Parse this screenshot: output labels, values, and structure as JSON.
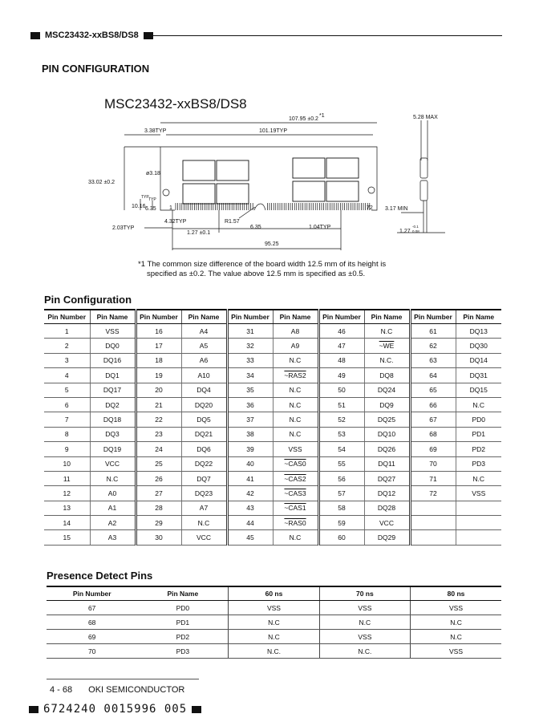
{
  "header": {
    "title": "MSC23432-xxBS8/DS8"
  },
  "section_title": "PIN CONFIGURATION",
  "diagram": {
    "title": "MSC23432-xxBS8/DS8",
    "dims": {
      "length": "107.95 ±0.2",
      "length_note": "*1",
      "pitch_span": "101.19TYP",
      "edge_offset": "3.38TYP",
      "height": "33.02 ±0.2",
      "hole": "ø3.18",
      "h1": "10.16",
      "h1_typ": "TYP",
      "h2": "6.35",
      "h2_typ": "TYP",
      "d1": "2.03TYP",
      "d2": "4.32TYP",
      "pitch": "1.27 ±0.1",
      "radius": "R1.57",
      "notch": "6.35",
      "pad": "1.04TYP",
      "span": "95.25",
      "pin_first": "1",
      "pin_last": "72",
      "thickness": "5.28 MAX",
      "lead": "3.17 MIN",
      "board": "1.27",
      "board_tol_plus": "-0.1",
      "board_tol_minus": "0.08"
    },
    "footnote": [
      "*1 The common size difference of the board width 12.5 mm of its height is",
      "specified as ±0.2. The value above 12.5 mm is specified as ±0.5."
    ]
  },
  "pin_config": {
    "title": "Pin Configuration",
    "headers": [
      "Pin Number",
      "Pin Name"
    ],
    "columns": [
      [
        [
          "1",
          "VSS"
        ],
        [
          "2",
          "DQ0"
        ],
        [
          "3",
          "DQ16"
        ],
        [
          "4",
          "DQ1"
        ],
        [
          "5",
          "DQ17"
        ],
        [
          "6",
          "DQ2"
        ],
        [
          "7",
          "DQ18"
        ],
        [
          "8",
          "DQ3"
        ],
        [
          "9",
          "DQ19"
        ],
        [
          "10",
          "VCC"
        ],
        [
          "11",
          "N.C"
        ],
        [
          "12",
          "A0"
        ],
        [
          "13",
          "A1"
        ],
        [
          "14",
          "A2"
        ],
        [
          "15",
          "A3"
        ]
      ],
      [
        [
          "16",
          "A4"
        ],
        [
          "17",
          "A5"
        ],
        [
          "18",
          "A6"
        ],
        [
          "19",
          "A10"
        ],
        [
          "20",
          "DQ4"
        ],
        [
          "21",
          "DQ20"
        ],
        [
          "22",
          "DQ5"
        ],
        [
          "23",
          "DQ21"
        ],
        [
          "24",
          "DQ6"
        ],
        [
          "25",
          "DQ22"
        ],
        [
          "26",
          "DQ7"
        ],
        [
          "27",
          "DQ23"
        ],
        [
          "28",
          "A7"
        ],
        [
          "29",
          "N.C"
        ],
        [
          "30",
          "VCC"
        ]
      ],
      [
        [
          "31",
          "A8"
        ],
        [
          "32",
          "A9"
        ],
        [
          "33",
          "N.C"
        ],
        [
          "34",
          "~RAS2"
        ],
        [
          "35",
          "N.C"
        ],
        [
          "36",
          "N.C"
        ],
        [
          "37",
          "N.C"
        ],
        [
          "38",
          "N.C"
        ],
        [
          "39",
          "VSS"
        ],
        [
          "40",
          "~CAS0"
        ],
        [
          "41",
          "~CAS2"
        ],
        [
          "42",
          "~CAS3"
        ],
        [
          "43",
          "~CAS1"
        ],
        [
          "44",
          "~RAS0"
        ],
        [
          "45",
          "N.C"
        ]
      ],
      [
        [
          "46",
          "N.C"
        ],
        [
          "47",
          "~WE"
        ],
        [
          "48",
          "N.C."
        ],
        [
          "49",
          "DQ8"
        ],
        [
          "50",
          "DQ24"
        ],
        [
          "51",
          "DQ9"
        ],
        [
          "52",
          "DQ25"
        ],
        [
          "53",
          "DQ10"
        ],
        [
          "54",
          "DQ26"
        ],
        [
          "55",
          "DQ11"
        ],
        [
          "56",
          "DQ27"
        ],
        [
          "57",
          "DQ12"
        ],
        [
          "58",
          "DQ28"
        ],
        [
          "59",
          "VCC"
        ],
        [
          "60",
          "DQ29"
        ]
      ],
      [
        [
          "61",
          "DQ13"
        ],
        [
          "62",
          "DQ30"
        ],
        [
          "63",
          "DQ14"
        ],
        [
          "64",
          "DQ31"
        ],
        [
          "65",
          "DQ15"
        ],
        [
          "66",
          "N.C"
        ],
        [
          "67",
          "PD0"
        ],
        [
          "68",
          "PD1"
        ],
        [
          "69",
          "PD2"
        ],
        [
          "70",
          "PD3"
        ],
        [
          "71",
          "N.C"
        ],
        [
          "72",
          "VSS"
        ],
        [
          "",
          ""
        ],
        [
          "",
          ""
        ],
        [
          "",
          ""
        ]
      ]
    ]
  },
  "presence_detect": {
    "title": "Presence Detect Pins",
    "headers": [
      "Pin Number",
      "Pin Name",
      "60 ns",
      "70 ns",
      "80 ns"
    ],
    "rows": [
      [
        "67",
        "PD0",
        "VSS",
        "VSS",
        "VSS"
      ],
      [
        "68",
        "PD1",
        "N.C",
        "N.C",
        "N.C"
      ],
      [
        "69",
        "PD2",
        "N.C",
        "VSS",
        "N.C"
      ],
      [
        "70",
        "PD3",
        "N.C.",
        "N.C.",
        "VSS"
      ]
    ]
  },
  "footer": {
    "page": "4 - 68",
    "company": "OKI SEMICONDUCTOR",
    "code": "6724240 0015996 005"
  }
}
